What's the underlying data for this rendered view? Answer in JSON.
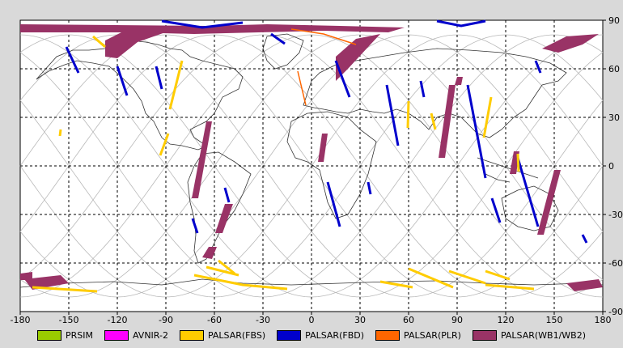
{
  "map": {
    "lon_ticks": [
      "-180",
      "-150",
      "-120",
      "-90",
      "-60",
      "-30",
      "0",
      "30",
      "60",
      "90",
      "120",
      "150",
      "180"
    ],
    "lat_ticks": [
      "90",
      "60",
      "30",
      "0",
      "-30",
      "-60",
      "-90"
    ],
    "lon_values": [
      -180,
      -150,
      -120,
      -90,
      -60,
      -30,
      0,
      30,
      60,
      90,
      120,
      150,
      180
    ],
    "lat_values": [
      90,
      60,
      30,
      0,
      -30,
      -60,
      -90
    ]
  },
  "legend": [
    {
      "label": "PRSIM",
      "color": "#99cc00"
    },
    {
      "label": "AVNIR-2",
      "color": "#ff00ff"
    },
    {
      "label": "PALSAR(FBS)",
      "color": "#ffcc00"
    },
    {
      "label": "PALSAR(FBD)",
      "color": "#0000cc"
    },
    {
      "label": "PALSAR(PLR)",
      "color": "#ff6600"
    },
    {
      "label": "PALSAR(WB1/WB2)",
      "color": "#993366"
    }
  ]
}
